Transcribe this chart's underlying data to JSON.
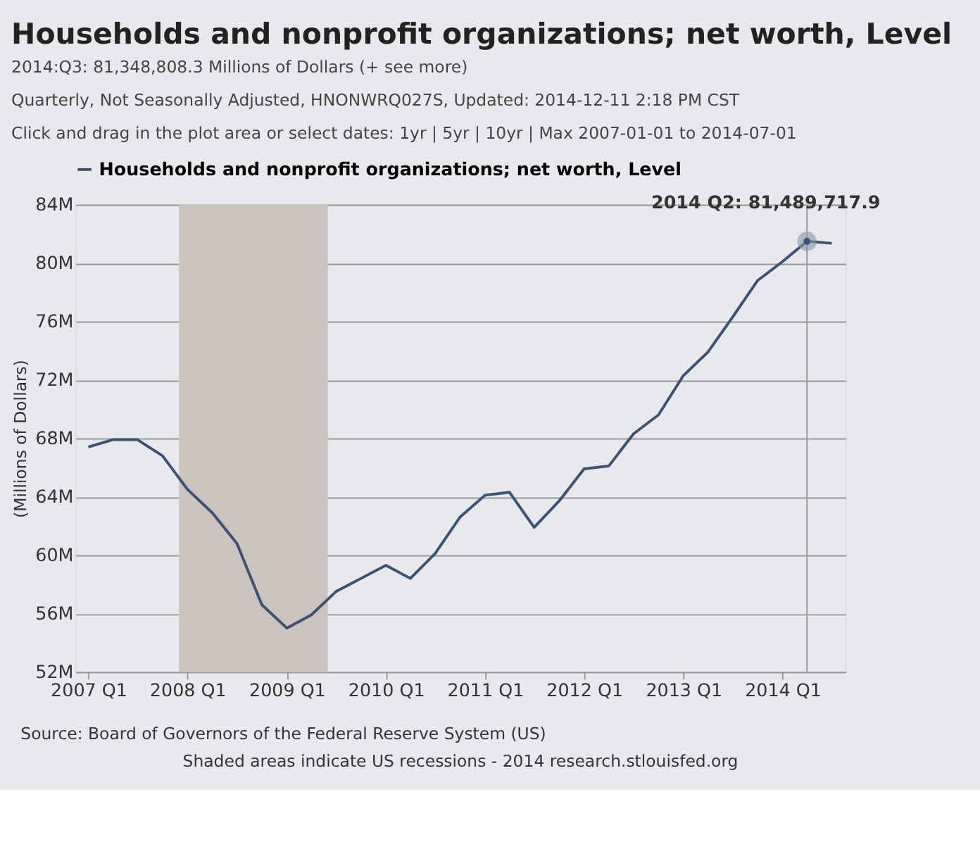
{
  "chart_data": {
    "type": "line",
    "title": "Households and nonprofit organizations; net worth, Level",
    "subtitle": "2014:Q3: 81,348,808.3 Millions of Dollars (+ see more)",
    "ylabel": "(Millions of Dollars)",
    "x": [
      "2007-01-01",
      "2007-04-01",
      "2007-07-01",
      "2007-10-01",
      "2008-01-01",
      "2008-04-01",
      "2008-07-01",
      "2008-10-01",
      "2009-01-01",
      "2009-04-01",
      "2009-07-01",
      "2009-10-01",
      "2010-01-01",
      "2010-04-01",
      "2010-07-01",
      "2010-10-01",
      "2011-01-01",
      "2011-04-01",
      "2011-07-01",
      "2011-10-01",
      "2012-01-01",
      "2012-04-01",
      "2012-07-01",
      "2012-10-01",
      "2013-01-01",
      "2013-04-01",
      "2013-07-01",
      "2013-10-01",
      "2014-01-01",
      "2014-04-01",
      "2014-07-01"
    ],
    "series": [
      {
        "name": "Households and nonprofit organizations; net worth, Level",
        "color": "#3d5177",
        "values": [
          67400000,
          67900000,
          67900000,
          66800000,
          64500000,
          62900000,
          60800000,
          56600000,
          55000000,
          55900000,
          57500000,
          58400000,
          59300000,
          58400000,
          60100000,
          62600000,
          64100000,
          64300000,
          61900000,
          63700000,
          65900000,
          66100000,
          68300000,
          69600000,
          72300000,
          73900000,
          76300000,
          78800000,
          80100000,
          81489717.9,
          81348808.3
        ]
      }
    ],
    "xlim": [
      "2006-11-15",
      "2014-08-20"
    ],
    "xticks": [
      {
        "value": "2007-01-01",
        "label": "2007 Q1"
      },
      {
        "value": "2008-01-01",
        "label": "2008 Q1"
      },
      {
        "value": "2009-01-01",
        "label": "2009 Q1"
      },
      {
        "value": "2010-01-01",
        "label": "2010 Q1"
      },
      {
        "value": "2011-01-01",
        "label": "2011 Q1"
      },
      {
        "value": "2012-01-01",
        "label": "2012 Q1"
      },
      {
        "value": "2013-01-01",
        "label": "2013 Q1"
      },
      {
        "value": "2014-01-01",
        "label": "2014 Q1"
      }
    ],
    "ylim": [
      52000000,
      84000000
    ],
    "yticks": [
      {
        "value": 52000000,
        "label": "52M"
      },
      {
        "value": 56000000,
        "label": "56M"
      },
      {
        "value": 60000000,
        "label": "60M"
      },
      {
        "value": 64000000,
        "label": "64M"
      },
      {
        "value": 68000000,
        "label": "68M"
      },
      {
        "value": 72000000,
        "label": "72M"
      },
      {
        "value": 76000000,
        "label": "76M"
      },
      {
        "value": 80000000,
        "label": "80M"
      },
      {
        "value": 84000000,
        "label": "84M"
      }
    ],
    "bands": [
      {
        "axis": "x",
        "from": "2007-12-01",
        "to": "2009-06-01",
        "color": "#cbc3be"
      }
    ],
    "ref_lines": [
      {
        "axis": "x",
        "value": "2014-04-01",
        "color": "#999999"
      }
    ],
    "annotations": [
      "Quarterly, Not Seasonally Adjusted, HNONWRQ027S, Updated: 2014-12-11 2:18 PM CST",
      "Click and drag in the plot area or select dates:  1yr | 5yr | 10yr | Max     2007-01-01  to  2014-07-01",
      {
        "text": "2014 Q2: 81,489,717.9",
        "x": "2014-04-01",
        "y": 81489717.9
      },
      "Source: Board of Governors of the Federal Reserve System (US)",
      "Shaded areas indicate US recessions - 2014 research.stlouisfed.org"
    ],
    "grid": "y",
    "legend": "top",
    "marker": "none",
    "line_style": "solid"
  }
}
